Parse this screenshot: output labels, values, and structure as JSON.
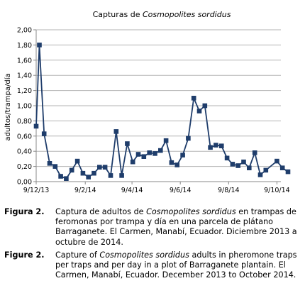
{
  "chart_data": {
    "type": "line",
    "title_prefix": "Capturas de ",
    "title_species": "Cosmopolites sordidus",
    "ylabel": "adultos/trampa/día",
    "xlabel": "",
    "ylim": [
      0,
      2
    ],
    "yticks": [
      "0,00",
      "0,20",
      "0,40",
      "0,60",
      "0,80",
      "1,00",
      "1,20",
      "1,40",
      "1,60",
      "1,80",
      "2,00"
    ],
    "xlim": [
      "2013-12-09",
      "2014-10-14"
    ],
    "xticks": [
      {
        "label": "9/12/13",
        "date": "2013-12-09"
      },
      {
        "label": "9/2/14",
        "date": "2014-02-09"
      },
      {
        "label": "9/4/14",
        "date": "2014-04-09"
      },
      {
        "label": "9/6/14",
        "date": "2014-06-09"
      },
      {
        "label": "9/8/14",
        "date": "2014-08-09"
      },
      {
        "label": "9/10/14",
        "date": "2014-10-09"
      }
    ],
    "grid": true,
    "color": "#1f3d6b",
    "series": [
      {
        "x": [
          "2013-12-09",
          "2013-12-13",
          "2013-12-19",
          "2013-12-26",
          "2014-01-02",
          "2014-01-09",
          "2014-01-16",
          "2014-01-23",
          "2014-01-30",
          "2014-02-06",
          "2014-02-13",
          "2014-02-20",
          "2014-02-27",
          "2014-03-06",
          "2014-03-13",
          "2014-03-20",
          "2014-03-27",
          "2014-04-03",
          "2014-04-10",
          "2014-04-17",
          "2014-04-24",
          "2014-05-01",
          "2014-05-08",
          "2014-05-15",
          "2014-05-22",
          "2014-05-29",
          "2014-06-05",
          "2014-06-12",
          "2014-06-19",
          "2014-06-26",
          "2014-07-03",
          "2014-07-10",
          "2014-07-17",
          "2014-07-24",
          "2014-07-31",
          "2014-08-07",
          "2014-08-14",
          "2014-08-21",
          "2014-08-28",
          "2014-09-04",
          "2014-09-11",
          "2014-09-18",
          "2014-09-25",
          "2014-10-09",
          "2014-10-16",
          "2014-10-23"
        ],
        "values": [
          0.73,
          1.8,
          0.63,
          0.24,
          0.2,
          0.07,
          0.04,
          0.15,
          0.27,
          0.11,
          0.06,
          0.11,
          0.19,
          0.19,
          0.08,
          0.66,
          0.08,
          0.5,
          0.26,
          0.36,
          0.33,
          0.38,
          0.37,
          0.41,
          0.54,
          0.25,
          0.22,
          0.35,
          0.57,
          1.1,
          0.93,
          1.0,
          0.45,
          0.48,
          0.47,
          0.31,
          0.23,
          0.21,
          0.26,
          0.18,
          0.38,
          0.09,
          0.15,
          0.27,
          0.18,
          0.13
        ]
      }
    ]
  },
  "captions": [
    {
      "label": "Figura 2.",
      "text_before": "Captura de adultos de ",
      "text_italic": "Cosmopolites sordidus",
      "text_after": " en trampas de feromonas por trampa y día en una parcela de plátano Barraganete. El Carmen, Manabí, Ecuador. Diciembre 2013 a octubre de 2014."
    },
    {
      "label": "Figure 2.",
      "text_before": "Capture of ",
      "text_italic": "Cosmopolites sordidus",
      "text_after": " adults in pheromone traps per traps and per day in a plot of Barraganete plantain. El Carmen, Manabí, Ecuador. December 2013 to October 2014."
    }
  ]
}
